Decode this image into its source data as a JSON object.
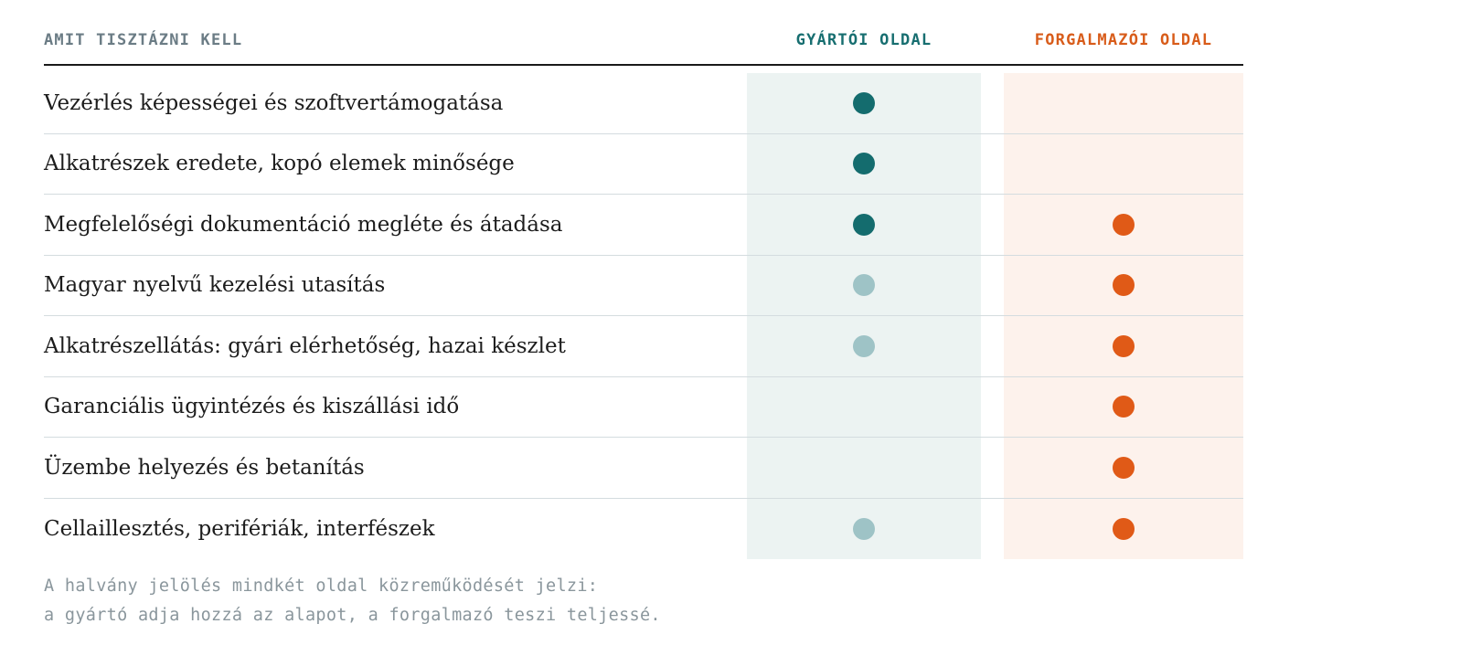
{
  "header": {
    "topic": "AMIT TISZTÁZNI KELL",
    "manufacturer": "GYÁRTÓI OLDAL",
    "distributor": "FORGALMAZÓI OLDAL"
  },
  "colors": {
    "manufacturer_strong": "#146c6e",
    "manufacturer_faint": "#9ec3c6",
    "distributor_strong": "#e05a17",
    "manufacturer_column_bg": "#ecf3f2",
    "distributor_column_bg": "#fdf2ec"
  },
  "rows": [
    {
      "label": "Vezérlés képességei és szoftvertámogatása",
      "manufacturer": "strong",
      "distributor": "none"
    },
    {
      "label": "Alkatrészek eredete, kopó elemek minősége",
      "manufacturer": "strong",
      "distributor": "none"
    },
    {
      "label": "Megfelelőségi dokumentáció megléte és átadása",
      "manufacturer": "strong",
      "distributor": "strong"
    },
    {
      "label": "Magyar nyelvű kezelési utasítás",
      "manufacturer": "faint",
      "distributor": "strong"
    },
    {
      "label": "Alkatrészellátás: gyári elérhetőség, hazai készlet",
      "manufacturer": "faint",
      "distributor": "strong"
    },
    {
      "label": "Garanciális ügyintézés és kiszállási idő",
      "manufacturer": "none",
      "distributor": "strong"
    },
    {
      "label": "Üzembe helyezés és betanítás",
      "manufacturer": "none",
      "distributor": "strong"
    },
    {
      "label": "Cellaillesztés, perifériák, interfészek",
      "manufacturer": "faint",
      "distributor": "strong"
    }
  ],
  "footnote": {
    "line1": "A halvány jelölés mindkét oldal közreműködését jelzi:",
    "line2": "a gyártó adja hozzá az alapot, a forgalmazó teszi teljessé."
  }
}
